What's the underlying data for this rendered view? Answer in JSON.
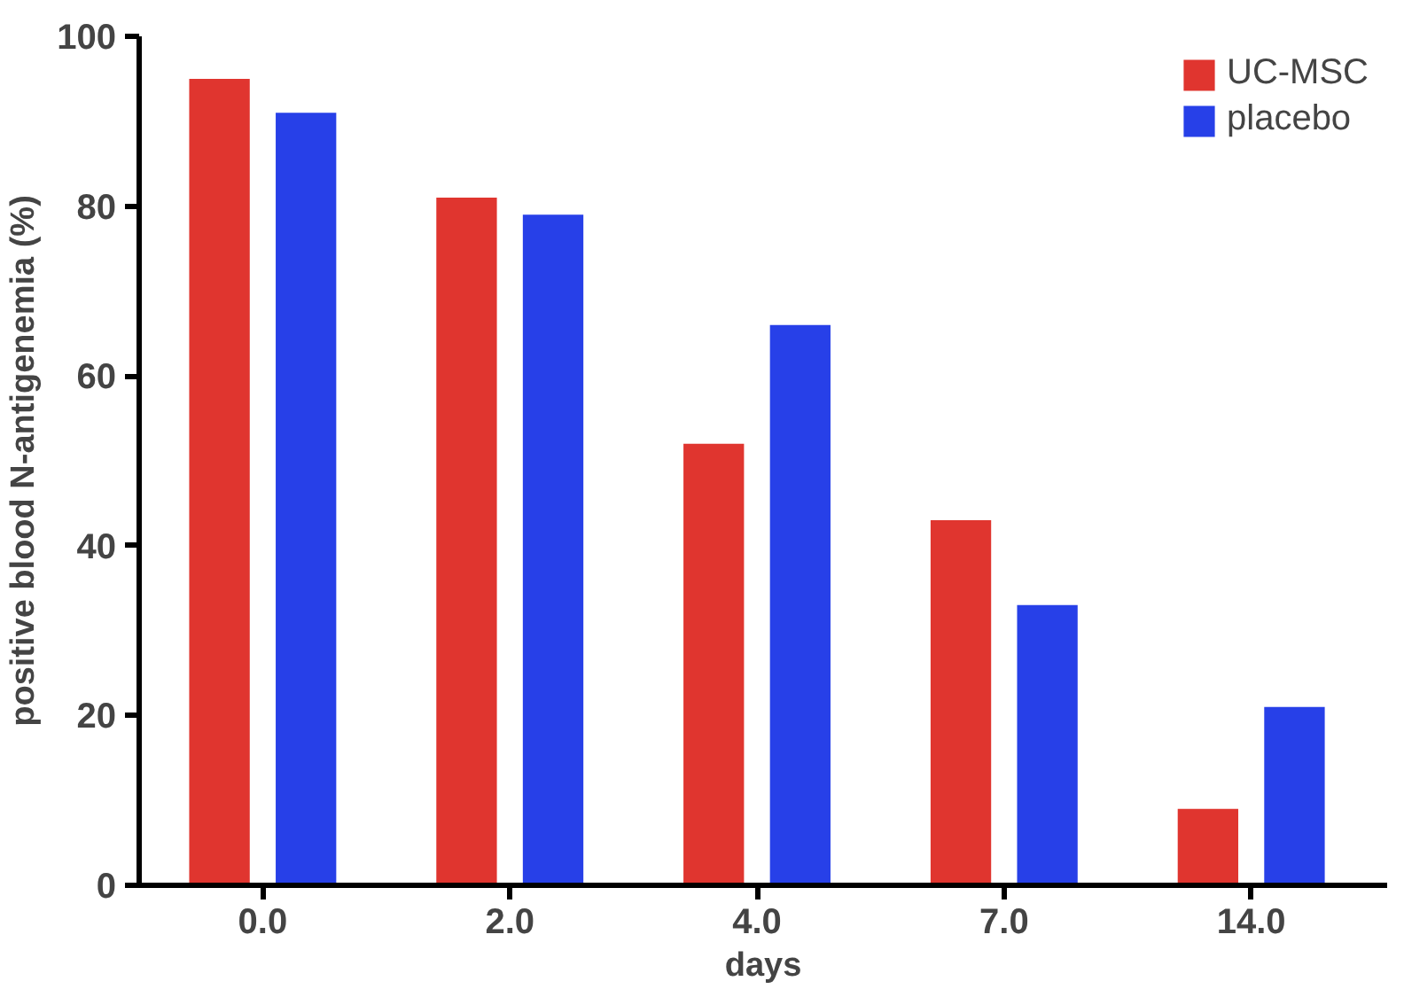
{
  "chart_data": {
    "type": "bar",
    "xlabel": "days",
    "ylabel": "positive blood N-antigenemia (%)",
    "categories": [
      "0.0",
      "2.0",
      "4.0",
      "7.0",
      "14.0"
    ],
    "series": [
      {
        "name": "UC-MSC",
        "color": "#e0352f",
        "values": [
          95,
          81,
          52,
          43,
          9
        ]
      },
      {
        "name": "placebo",
        "color": "#2740e8",
        "values": [
          91,
          79,
          66,
          33,
          21
        ]
      }
    ],
    "ylim": [
      0,
      100
    ],
    "yticks": [
      0,
      20,
      40,
      60,
      80,
      100
    ],
    "grid": false,
    "legend": "top right"
  }
}
